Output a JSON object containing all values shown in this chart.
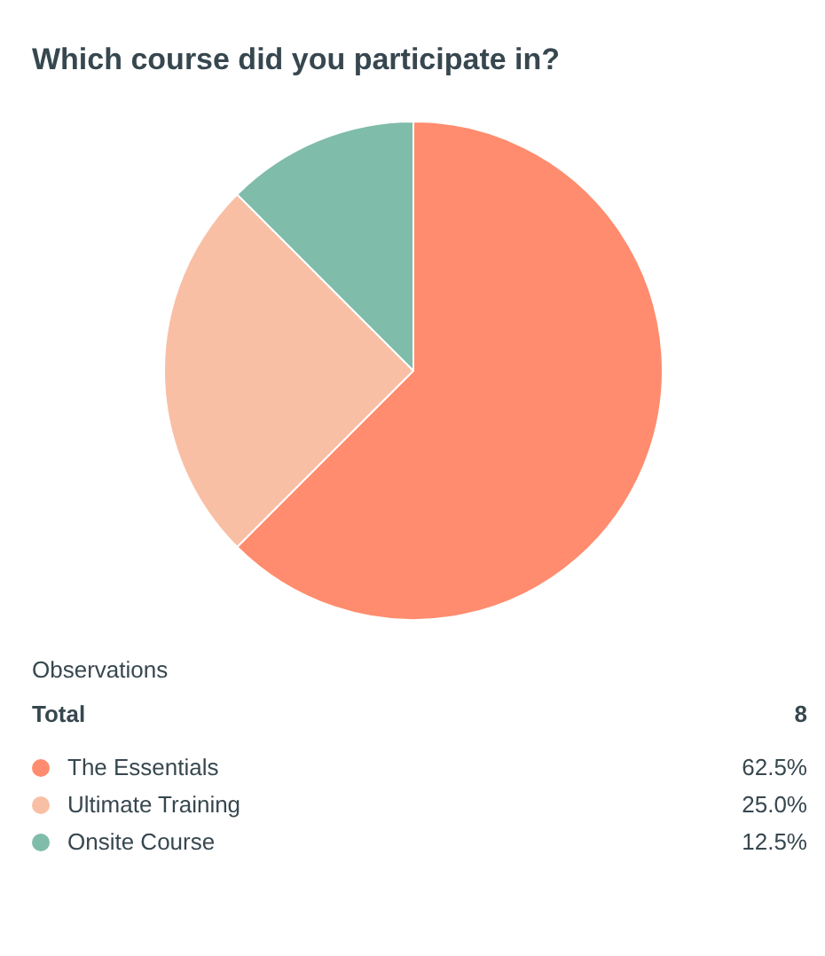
{
  "chart_data": {
    "type": "pie",
    "title": "Which course did you participate in?",
    "categories": [
      "The Essentials",
      "Ultimate Training",
      "Onsite Course"
    ],
    "values": [
      62.5,
      25,
      12.5
    ],
    "colors": [
      "#ff8c6e",
      "#f9bfa5",
      "#7fbcaa"
    ],
    "value_labels": [
      "62.5%",
      "25.0%",
      "12.5%"
    ],
    "legend": "bottom",
    "annotations": [
      "Observations",
      "Total",
      "8"
    ]
  }
}
